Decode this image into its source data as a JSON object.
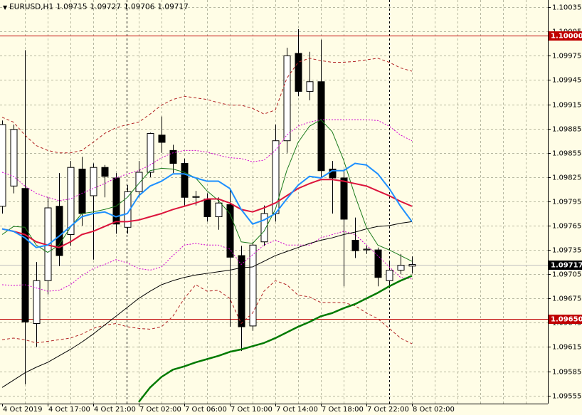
{
  "chart_data": {
    "type": "candlestick",
    "symbol": "EURUSD,H1",
    "categories": [
      "4 Oct 2019",
      null,
      null,
      null,
      "4 Oct 17:00",
      null,
      null,
      null,
      "4 Oct 21:00",
      null,
      null,
      null,
      "7 Oct 02:00",
      null,
      null,
      null,
      "7 Oct 06:00",
      null,
      null,
      null,
      "7 Oct 10:00",
      null,
      null,
      null,
      "7 Oct 14:00",
      null,
      null,
      null,
      "7 Oct 18:00",
      null,
      null,
      null,
      "7 Oct 22:00",
      null,
      null,
      null,
      "8 Oct 02:00"
    ],
    "open": [
      1.09789,
      1.09814,
      1.09811,
      1.09644,
      1.09697,
      1.09789,
      1.09754,
      1.09835,
      1.09802,
      1.09837,
      1.09824,
      1.09763,
      1.09807,
      1.09831,
      1.09877,
      1.09858,
      1.09842,
      1.098,
      1.09798,
      1.09776,
      1.09791,
      1.09728,
      1.09641,
      1.09745,
      1.0978,
      1.0987,
      1.09978,
      1.09931,
      1.09943,
      1.09835,
      1.09824,
      1.09747,
      1.09735,
      1.09735,
      1.09697,
      1.0971,
      1.09715
    ],
    "high": [
      1.09895,
      1.0989,
      1.09982,
      1.0972,
      1.098,
      1.0983,
      1.09845,
      1.0985,
      1.09842,
      1.0984,
      1.0983,
      1.09815,
      1.09845,
      1.0988,
      1.099,
      1.09865,
      1.09848,
      1.09808,
      1.09805,
      1.098,
      1.0981,
      1.0974,
      1.09745,
      1.0979,
      1.0989,
      1.09985,
      1.10008,
      1.0998,
      1.09995,
      1.09845,
      1.09835,
      1.09775,
      1.0974,
      1.09738,
      1.0972,
      1.0973,
      1.09727
    ],
    "low": [
      1.0978,
      1.09805,
      1.09569,
      1.09615,
      1.0968,
      1.09715,
      1.0974,
      1.09765,
      1.09723,
      1.098,
      1.09755,
      1.09755,
      1.098,
      1.09825,
      1.09855,
      1.0983,
      1.0979,
      1.0979,
      1.0977,
      1.0976,
      1.0964,
      1.0961,
      1.09635,
      1.0974,
      1.0977,
      1.09855,
      1.09925,
      1.0992,
      1.09825,
      1.0978,
      1.0969,
      1.09725,
      1.0973,
      1.0969,
      1.0969,
      1.09705,
      1.09706
    ],
    "close": [
      1.0989,
      1.09884,
      1.09646,
      1.09697,
      1.09787,
      1.09728,
      1.09837,
      1.0978,
      1.09837,
      1.09826,
      1.09767,
      1.09807,
      1.09831,
      1.09879,
      1.09868,
      1.09842,
      1.098,
      1.09801,
      1.09776,
      1.09793,
      1.09726,
      1.0964,
      1.09741,
      1.0978,
      1.0987,
      1.09975,
      1.09931,
      1.09943,
      1.09833,
      1.09824,
      1.09773,
      1.09734,
      1.09736,
      1.09701,
      1.0971,
      1.09716,
      1.09717
    ],
    "up_color": "#ffffff",
    "down_color": "#000000",
    "overlays": [
      {
        "color": "#b22222",
        "width": 1,
        "dash": "4,3",
        "values": [
          1.09899,
          1.09893,
          1.09877,
          1.09864,
          1.09858,
          1.09855,
          1.09855,
          1.09858,
          1.09868,
          1.09879,
          1.09886,
          1.0989,
          1.09893,
          1.09903,
          1.09914,
          1.09921,
          1.09925,
          1.09923,
          1.09921,
          1.09917,
          1.09914,
          1.09914,
          1.0991,
          1.09903,
          1.09908,
          1.09947,
          1.09967,
          1.09972,
          1.09969,
          1.09967,
          1.09967,
          1.09968,
          1.0997,
          1.09972,
          1.09967,
          1.0996,
          1.09956
        ]
      },
      {
        "color": "#b22222",
        "width": 1,
        "dash": "4,3",
        "values": [
          1.09624,
          1.09626,
          1.09624,
          1.0962,
          1.09622,
          1.09624,
          1.09626,
          1.09631,
          1.09638,
          1.09642,
          1.09644,
          1.0964,
          1.09638,
          1.09637,
          1.0964,
          1.09653,
          1.09675,
          1.09692,
          1.09684,
          1.09685,
          1.09675,
          1.09644,
          1.09657,
          1.09684,
          1.09697,
          1.09692,
          1.09679,
          1.09677,
          1.0967,
          1.0967,
          1.0967,
          1.09666,
          1.09657,
          1.0965,
          1.09638,
          1.09626,
          1.09619
        ]
      },
      {
        "color": "#d000d0",
        "width": 1,
        "dash": "2,2",
        "values": [
          1.09831,
          1.09826,
          1.09814,
          1.09805,
          1.098,
          1.09796,
          1.09798,
          1.09805,
          1.09811,
          1.09817,
          1.09824,
          1.09829,
          1.09833,
          1.0984,
          1.09849,
          1.09855,
          1.09858,
          1.09858,
          1.09856,
          1.09852,
          1.09849,
          1.09848,
          1.09844,
          1.09846,
          1.09858,
          1.09877,
          1.09888,
          1.09893,
          1.09896,
          1.09896,
          1.09896,
          1.09896,
          1.09896,
          1.09895,
          1.09888,
          1.09877,
          1.0987
        ]
      },
      {
        "color": "#d000d0",
        "width": 1,
        "dash": "2,2",
        "values": [
          1.09692,
          1.09691,
          1.09692,
          1.09688,
          1.09684,
          1.09685,
          1.09692,
          1.09703,
          1.09712,
          1.09717,
          1.09723,
          1.09719,
          1.09712,
          1.0971,
          1.09714,
          1.09728,
          1.09741,
          1.09743,
          1.09741,
          1.09741,
          1.09736,
          1.09717,
          1.09729,
          1.09741,
          1.09747,
          1.09741,
          1.09741,
          1.09741,
          1.0975,
          1.09754,
          1.09758,
          1.09754,
          1.09741,
          1.09728,
          1.09714,
          1.09701,
          1.09699
        ]
      },
      {
        "color": "#000000",
        "width": 1,
        "dash": "",
        "values": [
          1.09565,
          1.09574,
          1.09583,
          1.0959,
          1.09596,
          1.09604,
          1.09612,
          1.09621,
          1.09631,
          1.09642,
          1.09653,
          1.09664,
          1.09675,
          1.09684,
          1.09692,
          1.09697,
          1.09701,
          1.09704,
          1.09706,
          1.09708,
          1.0971,
          1.09713,
          1.09714,
          1.09721,
          1.09728,
          1.09733,
          1.09738,
          1.09743,
          1.09747,
          1.0975,
          1.09754,
          1.09757,
          1.09761,
          1.09764,
          1.09765,
          1.09768,
          1.0977
        ]
      },
      {
        "color": "#007a00",
        "width": 2.5,
        "dash": "",
        "values": [
          null,
          null,
          null,
          null,
          null,
          null,
          null,
          null,
          null,
          null,
          null,
          null,
          1.09547,
          1.09565,
          1.09578,
          1.09587,
          1.09591,
          1.09596,
          1.096,
          1.09604,
          1.09609,
          1.09612,
          1.09616,
          1.0962,
          1.09626,
          1.09633,
          1.0964,
          1.09646,
          1.09653,
          1.09657,
          1.09663,
          1.09668,
          1.09675,
          1.09682,
          1.0969,
          1.09697,
          1.09703
        ]
      },
      {
        "color": "#1a7a1a",
        "width": 1,
        "dash": "",
        "values": [
          1.09754,
          1.09764,
          1.09763,
          1.09741,
          1.09732,
          1.09741,
          1.09763,
          1.0978,
          1.09782,
          1.09785,
          1.09789,
          1.098,
          1.09817,
          1.09833,
          1.09836,
          1.09835,
          1.09831,
          1.09824,
          1.09808,
          1.09796,
          1.0978,
          1.09745,
          1.09743,
          1.09758,
          1.09785,
          1.09833,
          1.09868,
          1.09888,
          1.09896,
          1.09881,
          1.09846,
          1.09802,
          1.09763,
          1.09741,
          1.09735,
          1.09728,
          1.09721
        ]
      },
      {
        "color": "#dc143c",
        "width": 2,
        "dash": "",
        "values": [
          1.09761,
          1.09758,
          1.09754,
          1.09745,
          1.09741,
          1.09738,
          1.09745,
          1.09754,
          1.09758,
          1.09764,
          1.0977,
          1.0977,
          1.09772,
          1.09776,
          1.0978,
          1.09785,
          1.09789,
          1.09793,
          1.09798,
          1.09798,
          1.09793,
          1.09785,
          1.09782,
          1.09787,
          1.09793,
          1.09802,
          1.09811,
          1.09817,
          1.09822,
          1.09822,
          1.0982,
          1.09817,
          1.09814,
          1.09808,
          1.09802,
          1.09795,
          1.09789
        ]
      },
      {
        "color": "#1e90ff",
        "width": 2,
        "dash": "",
        "values": [
          1.09761,
          1.09758,
          1.0975,
          1.09738,
          1.09741,
          1.09752,
          1.09764,
          1.09776,
          1.0978,
          1.09782,
          1.09776,
          1.0978,
          1.09802,
          1.09814,
          1.0982,
          1.09829,
          1.09829,
          1.09824,
          1.0982,
          1.0982,
          1.09811,
          1.09785,
          1.09767,
          1.09772,
          1.0978,
          1.09798,
          1.09815,
          1.09826,
          1.09824,
          1.09833,
          1.09833,
          1.09842,
          1.0984,
          1.09829,
          1.09811,
          1.09789,
          1.0977
        ]
      }
    ],
    "levels": [
      {
        "value": 1.1,
        "label": "1.10000",
        "color": "#c00000"
      },
      {
        "value": 1.0965,
        "label": "1.09650",
        "color": "#c00000"
      }
    ],
    "ylim": [
      1.09545,
      1.10044
    ],
    "yticks": [
      1.10035,
      1.10005,
      1.09975,
      1.09945,
      1.09915,
      1.09885,
      1.09855,
      1.09825,
      1.09795,
      1.09765,
      1.09735,
      1.09705,
      1.09675,
      1.09645,
      1.09615,
      1.09585,
      1.09555
    ],
    "grid": true
  }
}
